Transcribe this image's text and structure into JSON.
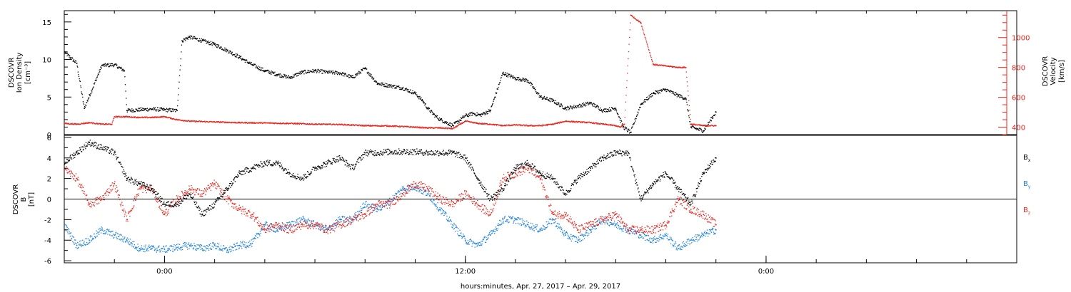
{
  "chart_data": [
    {
      "type": "scatter",
      "panel": "top",
      "x_unit": "hours since Apr 27 0:00",
      "xlim": [
        -4,
        34
      ],
      "ylabel_lines": [
        "DSCOVR",
        "Ion Density",
        "[cm⁻³]"
      ],
      "ylim": [
        0,
        16.5
      ],
      "y_ticks": [
        0,
        5,
        10,
        15
      ],
      "y_tick_labels": [
        "0",
        "5",
        "10",
        "15"
      ],
      "y2label_lines": [
        "DSCOVR",
        "Velocity",
        "[km/s]"
      ],
      "y2lim": [
        350,
        1180
      ],
      "y2_ticks": [
        400,
        600,
        800,
        1000
      ],
      "y2_tick_labels": [
        "400",
        "600",
        "800",
        "1000"
      ],
      "series": [
        {
          "role": "ion-density",
          "color": "#000000",
          "x": [
            -4,
            -3.5,
            -3.2,
            -2.5,
            -2,
            -1.6,
            -1.5,
            -0.5,
            0,
            0.5,
            0.7,
            1,
            1.5,
            2,
            2.5,
            3,
            3.5,
            4,
            4.5,
            5,
            5.5,
            6,
            6.5,
            7,
            7.5,
            8,
            8.5,
            9,
            9.5,
            10,
            10.3,
            10.5,
            10.8,
            11,
            11.5,
            12,
            12.3,
            12.6,
            13,
            13.5,
            14,
            14.5,
            15,
            15.5,
            16,
            16.5,
            17,
            17.5,
            18,
            18.3,
            18.6,
            19,
            19.5,
            20,
            20.5,
            20.8,
            21,
            21.5,
            22
          ],
          "y": [
            11,
            9.5,
            3.5,
            9.2,
            9.3,
            8.5,
            3.2,
            3.4,
            3.3,
            3.2,
            12.5,
            13,
            12.5,
            12,
            11.2,
            10.3,
            9.3,
            8.5,
            8,
            7.6,
            8.3,
            8.5,
            8.3,
            8.2,
            7.6,
            8.8,
            6.8,
            6.5,
            6.2,
            5.5,
            4.5,
            3.5,
            2.5,
            2,
            1.2,
            2.5,
            2.8,
            2.6,
            3.2,
            8.2,
            7.5,
            7.2,
            5,
            4.5,
            3.5,
            3.8,
            4.2,
            3.2,
            3.5,
            1,
            0.3,
            4,
            5.5,
            6,
            5.2,
            4.8,
            1,
            0.5,
            3
          ]
        },
        {
          "role": "velocity",
          "color": "#e8241c",
          "axis": "right",
          "x": [
            -4,
            -3.5,
            -3,
            -2.5,
            -2.1,
            -2,
            -1.5,
            -1,
            -0.5,
            0,
            0.5,
            1,
            2,
            3,
            4,
            5,
            6,
            7,
            8,
            9,
            10,
            10.5,
            11,
            11.5,
            12,
            12.5,
            13,
            13.5,
            14,
            14.5,
            15,
            15.5,
            16,
            16.5,
            17,
            17.5,
            18,
            18.2,
            18.35,
            18.6,
            19,
            19.5,
            20,
            20.5,
            20.8,
            21,
            21.5,
            22
          ],
          "y": [
            425,
            420,
            430,
            420,
            420,
            470,
            470,
            465,
            465,
            470,
            450,
            440,
            435,
            430,
            428,
            425,
            420,
            418,
            410,
            408,
            400,
            395,
            395,
            390,
            440,
            425,
            420,
            410,
            415,
            410,
            410,
            420,
            440,
            435,
            430,
            420,
            410,
            400,
            420,
            1150,
            1100,
            820,
            810,
            800,
            800,
            420,
            410,
            410
          ]
        }
      ]
    },
    {
      "type": "scatter",
      "panel": "bottom",
      "x_unit": "hours since Apr 27 0:00",
      "xlim": [
        -4,
        34
      ],
      "ylabel_lines": [
        "DSCOVR",
        "B",
        "[nT]"
      ],
      "ylim": [
        -6.2,
        6.2
      ],
      "y_ticks": [
        -6,
        -4,
        -2,
        0,
        2,
        4,
        6
      ],
      "y_tick_labels": [
        "-6",
        "-4",
        "-2",
        "0",
        "2",
        "4",
        "6"
      ],
      "legend": [
        {
          "label": "B",
          "sub": "x",
          "color": "#000000"
        },
        {
          "label": "B",
          "sub": "y",
          "color": "#1a7fdc"
        },
        {
          "label": "B",
          "sub": "z",
          "color": "#e8241c"
        }
      ],
      "series": [
        {
          "name": "Bx",
          "color": "#000000",
          "x": [
            -4,
            -3.5,
            -3,
            -2.5,
            -2,
            -1.5,
            -1,
            -0.5,
            0,
            0.5,
            1,
            1.5,
            2,
            2.5,
            3,
            3.5,
            4,
            4.5,
            5,
            5.5,
            6,
            6.5,
            7,
            7.5,
            8,
            8.5,
            9,
            9.5,
            10,
            10.5,
            11,
            11.5,
            12,
            12.5,
            13,
            13.5,
            14,
            14.5,
            15,
            15.5,
            16,
            16.5,
            17,
            17.5,
            18,
            18.5,
            19,
            19.5,
            20,
            20.5,
            21,
            21.5,
            22
          ],
          "y": [
            3.5,
            4.5,
            5.5,
            5,
            4.5,
            2,
            1.5,
            1,
            -0.5,
            -0.5,
            0.5,
            -1.5,
            -0.5,
            1,
            2.5,
            3,
            3.5,
            3.5,
            2.5,
            2,
            3,
            3.5,
            4,
            3,
            4.5,
            4.5,
            4.6,
            4.6,
            4.6,
            4.5,
            4.5,
            4.5,
            4,
            2,
            0,
            1,
            3,
            3.5,
            2.5,
            2,
            0.5,
            2,
            3,
            4,
            4.5,
            4.5,
            0,
            1.5,
            2.5,
            1,
            -0.5,
            2.5,
            4
          ]
        },
        {
          "name": "By",
          "color": "#1a7fdc",
          "x": [
            -4,
            -3.5,
            -3,
            -2.5,
            -2,
            -1.5,
            -1,
            -0.5,
            0,
            0.5,
            1,
            1.5,
            2,
            2.5,
            3,
            3.5,
            4,
            4.5,
            5,
            5.5,
            6,
            6.5,
            7,
            7.5,
            8,
            8.5,
            9,
            9.5,
            10,
            10.5,
            11,
            11.5,
            12,
            12.5,
            13,
            13.5,
            14,
            14.5,
            15,
            15.5,
            16,
            16.5,
            17,
            17.5,
            18,
            18.5,
            19,
            19.5,
            20,
            20.5,
            21,
            21.5,
            22
          ],
          "y": [
            -2.5,
            -4.5,
            -4,
            -3,
            -3.5,
            -4,
            -4.8,
            -4.8,
            -4.9,
            -4.7,
            -4.5,
            -4.8,
            -4.5,
            -5,
            -4.5,
            -4.3,
            -2.5,
            -3,
            -2.5,
            -2,
            -2.5,
            -3,
            -2,
            -2,
            -0.5,
            -1,
            -0.2,
            1,
            1.2,
            0.5,
            -1,
            -2.5,
            -4,
            -4.5,
            -3.5,
            -2,
            -2,
            -2.5,
            -3,
            -2,
            -3.5,
            -4,
            -3,
            -2,
            -2.5,
            -3,
            -3.5,
            -4,
            -3.5,
            -4.8,
            -4,
            -3.5,
            -3
          ]
        },
        {
          "name": "Bz",
          "color": "#e8241c",
          "x": [
            -4,
            -3.5,
            -3,
            -2.5,
            -2,
            -1.5,
            -1,
            -0.5,
            0,
            0.5,
            1,
            1.5,
            2,
            2.5,
            3,
            3.5,
            4,
            4.5,
            5,
            5.5,
            6,
            6.5,
            7,
            7.5,
            8,
            8.5,
            9,
            9.5,
            10,
            10.5,
            11,
            11.5,
            12,
            12.5,
            13,
            13.5,
            14,
            14.5,
            15,
            15.5,
            16,
            16.5,
            17,
            17.5,
            18,
            18.5,
            19,
            19.5,
            20,
            20.5,
            21,
            21.5,
            22
          ],
          "y": [
            3,
            2,
            -0.5,
            0,
            1.5,
            -2,
            1,
            1,
            -1.5,
            0,
            1,
            0.5,
            1.5,
            0,
            -1,
            -1.5,
            -3,
            -2.5,
            -3,
            -2.5,
            -2.5,
            -3,
            -2.5,
            -2,
            -1.5,
            -0.5,
            -0.5,
            0.5,
            1.5,
            1,
            0,
            -0.5,
            0.5,
            -0.5,
            -1.5,
            2,
            2.5,
            3,
            2,
            -1.5,
            -1.5,
            -3,
            -2.5,
            -2,
            -1.5,
            -3,
            -3,
            -3,
            -2.5,
            0,
            -1,
            -1.5,
            -2.5
          ]
        }
      ]
    }
  ],
  "x_axis": {
    "tick_hours": [
      0,
      12,
      24
    ],
    "tick_labels": [
      "0:00",
      "12:00",
      "0:00"
    ],
    "minor_step_hours": 2,
    "label": "hours:minutes, Apr. 27, 2017 – Apr. 29, 2017"
  }
}
